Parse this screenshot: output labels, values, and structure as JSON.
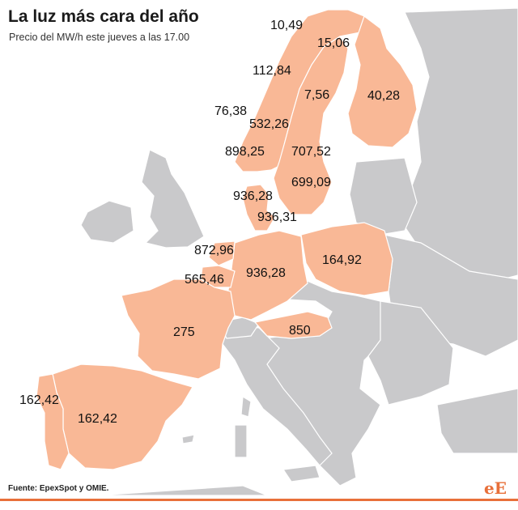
{
  "title": "La luz más cara del año",
  "subtitle": "Precio del MW/h este jueves a las 17.00",
  "source": "Fuente: EpexSpot y OMIE.",
  "logo": "eE",
  "colors": {
    "highlight": "#f9b896",
    "land": "#c9c9cb",
    "water": "#ffffff",
    "border": "#ffffff",
    "accent": "#e8703a"
  },
  "prices": {
    "no_north_a": "10,49",
    "no_north_b": "15,06",
    "no_mid": "112,84",
    "se_north": "7,56",
    "fi": "40,28",
    "no_west": "76,38",
    "no_central": "532,26",
    "no_south": "898,25",
    "se_south": "707,52",
    "se_southmost": "699,09",
    "dk_west": "936,28",
    "dk_east": "936,31",
    "nl": "872,96",
    "de": "936,28",
    "pl": "164,92",
    "be": "565,46",
    "fr": "275",
    "at": "850",
    "pt": "162,42",
    "es": "162,42"
  }
}
